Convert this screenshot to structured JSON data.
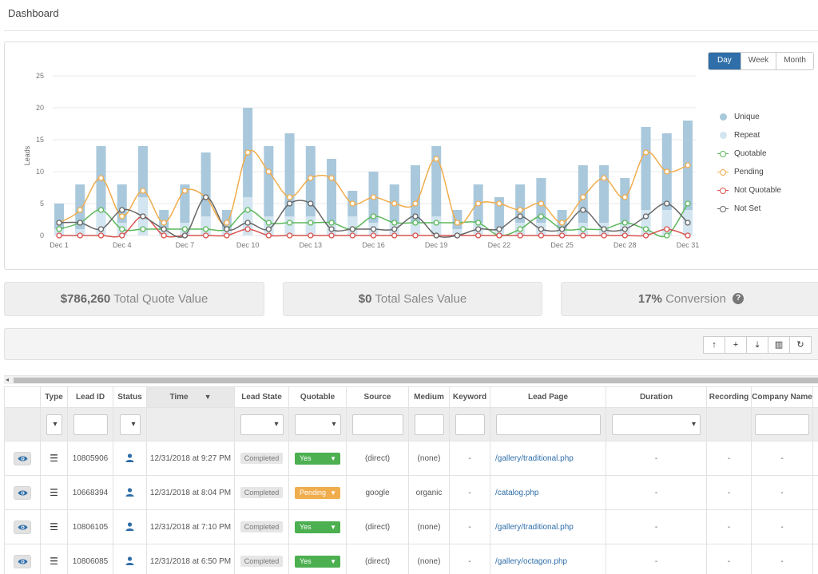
{
  "page": {
    "title": "Dashboard"
  },
  "range_toggle": {
    "options": [
      "Day",
      "Week",
      "Month"
    ],
    "active": "Day"
  },
  "chart_data": {
    "type": "bar",
    "ylabel": "Leads",
    "xlabel": "",
    "ylim": [
      0,
      25
    ],
    "yticks": [
      0,
      5,
      10,
      15,
      20,
      25
    ],
    "categories": [
      "Dec 1",
      "Dec 2",
      "Dec 3",
      "Dec 4",
      "Dec 5",
      "Dec 6",
      "Dec 7",
      "Dec 8",
      "Dec 9",
      "Dec 10",
      "Dec 11",
      "Dec 12",
      "Dec 13",
      "Dec 14",
      "Dec 15",
      "Dec 16",
      "Dec 17",
      "Dec 18",
      "Dec 19",
      "Dec 20",
      "Dec 21",
      "Dec 22",
      "Dec 23",
      "Dec 24",
      "Dec 25",
      "Dec 26",
      "Dec 27",
      "Dec 28",
      "Dec 29",
      "Dec 30",
      "Dec 31"
    ],
    "xtick_labels": [
      "Dec 1",
      "Dec 4",
      "Dec 7",
      "Dec 10",
      "Dec 13",
      "Dec 16",
      "Dec 19",
      "Dec 22",
      "Dec 25",
      "Dec 28",
      "Dec 31"
    ],
    "bar_series": [
      {
        "name": "Unique",
        "color": "#a9c8dc",
        "values": [
          5,
          8,
          14,
          8,
          14,
          4,
          8,
          13,
          4,
          20,
          14,
          16,
          14,
          12,
          7,
          10,
          8,
          11,
          14,
          4,
          8,
          6,
          8,
          9,
          4,
          11,
          11,
          9,
          17,
          16,
          18
        ]
      },
      {
        "name": "Repeat",
        "color": "#d3e5f0",
        "values": [
          1,
          1,
          4,
          2,
          6,
          1,
          2,
          3,
          1,
          6,
          3,
          3,
          3,
          2,
          3,
          2,
          2,
          2,
          3,
          1,
          2,
          1,
          2,
          2,
          1,
          2,
          2,
          2,
          4,
          4,
          4
        ]
      }
    ],
    "line_series": [
      {
        "name": "Quotable",
        "color": "#5cb85c",
        "values": [
          1,
          2,
          4,
          1,
          1,
          1,
          1,
          1,
          1,
          4,
          2,
          2,
          2,
          2,
          1,
          3,
          2,
          2,
          2,
          2,
          2,
          0,
          1,
          3,
          1,
          1,
          1,
          2,
          1,
          0,
          5
        ]
      },
      {
        "name": "Pending",
        "color": "#f0ad4e",
        "values": [
          2,
          4,
          9,
          3,
          7,
          2,
          7,
          6,
          2,
          13,
          10,
          6,
          9,
          9,
          5,
          6,
          5,
          5,
          12,
          2,
          5,
          5,
          4,
          5,
          2,
          6,
          9,
          6,
          13,
          10,
          11
        ]
      },
      {
        "name": "Not Quotable",
        "color": "#d9534f",
        "values": [
          0,
          0,
          0,
          0,
          3,
          0,
          0,
          0,
          0,
          1,
          0,
          0,
          0,
          0,
          0,
          0,
          0,
          0,
          0,
          0,
          0,
          0,
          0,
          0,
          0,
          0,
          0,
          0,
          0,
          1,
          0
        ]
      },
      {
        "name": "Not Set",
        "color": "#666666",
        "values": [
          2,
          2,
          1,
          4,
          3,
          1,
          0,
          6,
          1,
          2,
          1,
          5,
          5,
          1,
          1,
          1,
          1,
          3,
          0,
          0,
          1,
          1,
          3,
          1,
          1,
          4,
          1,
          1,
          3,
          5,
          2
        ]
      }
    ]
  },
  "legend": [
    {
      "label": "Unique",
      "kind": "dot",
      "color": "#a9c8dc"
    },
    {
      "label": "Repeat",
      "kind": "dot",
      "color": "#d3e5f0"
    },
    {
      "label": "Quotable",
      "kind": "line",
      "color": "#5cb85c"
    },
    {
      "label": "Pending",
      "kind": "line",
      "color": "#f0ad4e"
    },
    {
      "label": "Not Quotable",
      "kind": "line",
      "color": "#d9534f"
    },
    {
      "label": "Not Set",
      "kind": "line",
      "color": "#666666"
    }
  ],
  "stats": {
    "quote_value": "$786,260",
    "quote_label": "Total Quote Value",
    "sales_value": "$0",
    "sales_label": "Total Sales Value",
    "conversion_value": "17%",
    "conversion_label": "Conversion",
    "help_glyph": "?"
  },
  "toolbar": {
    "buttons": [
      {
        "name": "sort-up-icon",
        "glyph": "↑"
      },
      {
        "name": "add-icon",
        "glyph": "+"
      },
      {
        "name": "download-icon",
        "glyph": "⤓"
      },
      {
        "name": "columns-icon",
        "glyph": "▥"
      },
      {
        "name": "refresh-icon",
        "glyph": "↻"
      }
    ]
  },
  "scrollbar": {
    "arrow": "◂"
  },
  "table": {
    "headers": [
      "",
      "Type",
      "Lead ID",
      "Status",
      "Time",
      "Lead State",
      "Quotable",
      "Source",
      "Medium",
      "Keyword",
      "Lead Page",
      "Duration",
      "Recording",
      "Company Name"
    ],
    "sorted_caret": "⌄",
    "rows": [
      {
        "lead_id": "10805906",
        "time": "12/31/2018 at 9:27 PM",
        "state": "Completed",
        "quotable": "Yes",
        "quotable_kind": "yes",
        "source": "(direct)",
        "medium": "(none)",
        "keyword": "-",
        "lead_page": "/gallery/traditional.php",
        "duration": "-",
        "recording": "-",
        "company": "-"
      },
      {
        "lead_id": "10668394",
        "time": "12/31/2018 at 8:04 PM",
        "state": "Completed",
        "quotable": "Pending",
        "quotable_kind": "pending",
        "source": "google",
        "medium": "organic",
        "keyword": "-",
        "lead_page": "/catalog.php",
        "duration": "-",
        "recording": "-",
        "company": "-"
      },
      {
        "lead_id": "10806105",
        "time": "12/31/2018 at 7:10 PM",
        "state": "Completed",
        "quotable": "Yes",
        "quotable_kind": "yes",
        "source": "(direct)",
        "medium": "(none)",
        "keyword": "-",
        "lead_page": "/gallery/traditional.php",
        "duration": "-",
        "recording": "-",
        "company": "-"
      },
      {
        "lead_id": "10806085",
        "time": "12/31/2018 at 6:50 PM",
        "state": "Completed",
        "quotable": "Yes",
        "quotable_kind": "yes",
        "source": "(direct)",
        "medium": "(none)",
        "keyword": "-",
        "lead_page": "/gallery/octagon.php",
        "duration": "-",
        "recording": "-",
        "company": "-"
      }
    ]
  }
}
